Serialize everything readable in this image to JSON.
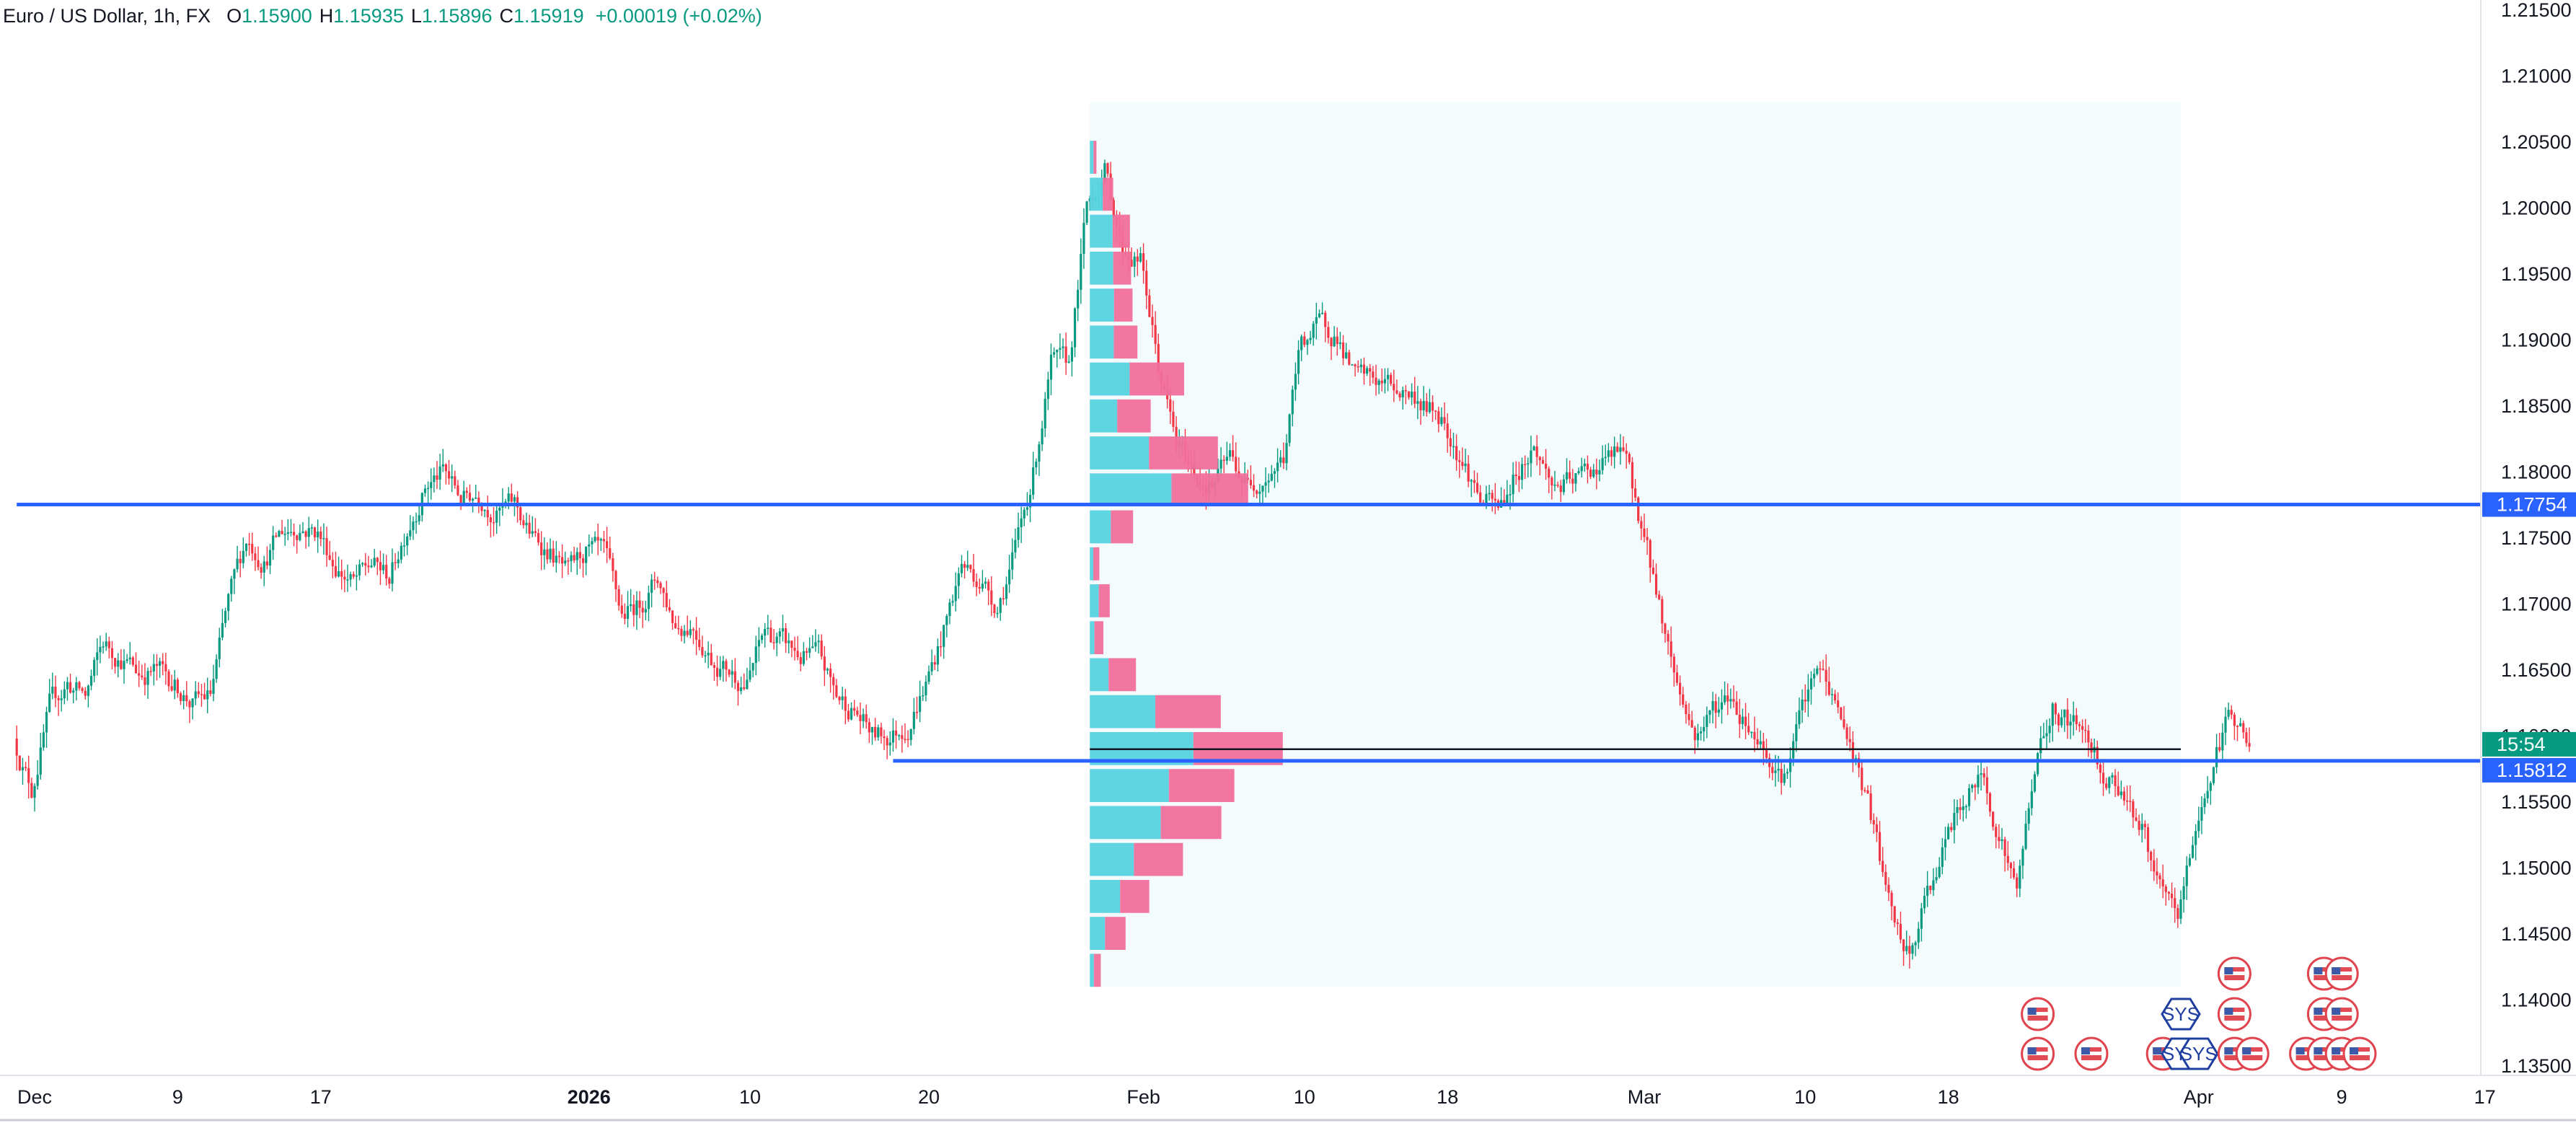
{
  "legend": {
    "symbol": "Euro / US Dollar, 1h, FX",
    "open_label": "O",
    "open": "1.15900",
    "high_label": "H",
    "high": "1.15935",
    "low_label": "L",
    "low": "1.15896",
    "close_label": "C",
    "close": "1.15919",
    "change": "+0.00019 (+0.02%)"
  },
  "colors": {
    "up": "#089981",
    "down": "#f23645",
    "hline": "#2962ff",
    "poc": "#131722",
    "vp_up": "#56d3e0",
    "vp_down": "#f06f9b",
    "vp_bg": "#f3fbfd"
  },
  "price_tags": {
    "countdown": "15:54",
    "last_price": "1.15812"
  },
  "chart_data": {
    "type": "candlestick",
    "symbol": "EURUSD",
    "timeframe": "1h",
    "y_axis": {
      "range": [
        1.135,
        1.215
      ],
      "ticks": [
        "1.21500",
        "1.21000",
        "1.20500",
        "1.20000",
        "1.19500",
        "1.19000",
        "1.18500",
        "1.18000",
        "1.17500",
        "1.17000",
        "1.16500",
        "1.16000",
        "1.15500",
        "1.15000",
        "1.14500",
        "1.14000",
        "1.13500"
      ]
    },
    "x_axis": {
      "ticks": [
        {
          "label": "Dec",
          "date": "2025-12-01",
          "bold": false
        },
        {
          "label": "9",
          "date": "2025-12-09",
          "bold": false
        },
        {
          "label": "17",
          "date": "2025-12-17",
          "bold": false
        },
        {
          "label": "2026",
          "date": "2026-01-01",
          "bold": true
        },
        {
          "label": "10",
          "date": "2026-01-10",
          "bold": false
        },
        {
          "label": "20",
          "date": "2026-01-20",
          "bold": false
        },
        {
          "label": "Feb",
          "date": "2026-02-01",
          "bold": false
        },
        {
          "label": "10",
          "date": "2026-02-10",
          "bold": false
        },
        {
          "label": "18",
          "date": "2026-02-18",
          "bold": false
        },
        {
          "label": "Mar",
          "date": "2026-03-01",
          "bold": false
        },
        {
          "label": "10",
          "date": "2026-03-10",
          "bold": false
        },
        {
          "label": "18",
          "date": "2026-03-18",
          "bold": false
        },
        {
          "label": "Apr",
          "date": "2026-04-01",
          "bold": false
        },
        {
          "label": "9",
          "date": "2026-04-09",
          "bold": false
        },
        {
          "label": "17",
          "date": "2026-04-17",
          "bold": false
        }
      ]
    },
    "price_path": [
      [
        "2025-11-30",
        1.1598
      ],
      [
        "2025-12-01",
        1.156
      ],
      [
        "2025-12-02",
        1.162
      ],
      [
        "2025-12-03",
        1.164
      ],
      [
        "2025-12-04",
        1.163
      ],
      [
        "2025-12-05",
        1.167
      ],
      [
        "2025-12-06",
        1.166
      ],
      [
        "2025-12-07",
        1.1648
      ],
      [
        "2025-12-08",
        1.165
      ],
      [
        "2025-12-09",
        1.164
      ],
      [
        "2025-12-10",
        1.1625
      ],
      [
        "2025-12-11",
        1.163
      ],
      [
        "2025-12-12",
        1.17
      ],
      [
        "2025-12-13",
        1.175
      ],
      [
        "2025-12-14",
        1.1735
      ],
      [
        "2025-12-15",
        1.1755
      ],
      [
        "2025-12-16",
        1.176
      ],
      [
        "2025-12-17",
        1.1755
      ],
      [
        "2025-12-18",
        1.173
      ],
      [
        "2025-12-19",
        1.1715
      ],
      [
        "2025-12-20",
        1.173
      ],
      [
        "2025-12-21",
        1.172
      ],
      [
        "2025-12-22",
        1.176
      ],
      [
        "2025-12-23",
        1.179
      ],
      [
        "2025-12-24",
        1.18
      ],
      [
        "2025-12-25",
        1.178
      ],
      [
        "2025-12-26",
        1.1785
      ],
      [
        "2025-12-27",
        1.177
      ],
      [
        "2025-12-28",
        1.1775
      ],
      [
        "2025-12-29",
        1.175
      ],
      [
        "2025-12-30",
        1.174
      ],
      [
        "2025-12-31",
        1.172
      ],
      [
        "2026-01-01",
        1.174
      ],
      [
        "2026-01-02",
        1.1735
      ],
      [
        "2026-01-03",
        1.169
      ],
      [
        "2026-01-04",
        1.17
      ],
      [
        "2026-01-05",
        1.172
      ],
      [
        "2026-01-06",
        1.1685
      ],
      [
        "2026-01-07",
        1.1685
      ],
      [
        "2026-01-08",
        1.166
      ],
      [
        "2026-01-09",
        1.165
      ],
      [
        "2026-01-10",
        1.164
      ],
      [
        "2026-01-11",
        1.168
      ],
      [
        "2026-01-12",
        1.167
      ],
      [
        "2026-01-13",
        1.166
      ],
      [
        "2026-01-14",
        1.166
      ],
      [
        "2026-01-15",
        1.163
      ],
      [
        "2026-01-16",
        1.162
      ],
      [
        "2026-01-17",
        1.16
      ],
      [
        "2026-01-18",
        1.16
      ],
      [
        "2026-01-19",
        1.161
      ],
      [
        "2026-01-20",
        1.164
      ],
      [
        "2026-01-21",
        1.168
      ],
      [
        "2026-01-22",
        1.173
      ],
      [
        "2026-01-23",
        1.172
      ],
      [
        "2026-01-24",
        1.17
      ],
      [
        "2026-01-25",
        1.174
      ],
      [
        "2026-01-26",
        1.18
      ],
      [
        "2026-01-27",
        1.188
      ],
      [
        "2026-01-28",
        1.188
      ],
      [
        "2026-01-29",
        1.2
      ],
      [
        "2026-01-30",
        1.203
      ],
      [
        "2026-01-31",
        1.197
      ],
      [
        "2026-02-01",
        1.196
      ],
      [
        "2026-02-02",
        1.188
      ],
      [
        "2026-02-03",
        1.182
      ],
      [
        "2026-02-04",
        1.18
      ],
      [
        "2026-02-05",
        1.179
      ],
      [
        "2026-02-06",
        1.181
      ],
      [
        "2026-02-07",
        1.179
      ],
      [
        "2026-02-08",
        1.18
      ],
      [
        "2026-02-09",
        1.181
      ],
      [
        "2026-02-10",
        1.19
      ],
      [
        "2026-02-11",
        1.191
      ],
      [
        "2026-02-12",
        1.1905
      ],
      [
        "2026-02-13",
        1.187
      ],
      [
        "2026-02-14",
        1.187
      ],
      [
        "2026-02-15",
        1.1865
      ],
      [
        "2026-02-16",
        1.186
      ],
      [
        "2026-02-17",
        1.185
      ],
      [
        "2026-02-18",
        1.184
      ],
      [
        "2026-02-19",
        1.181
      ],
      [
        "2026-02-20",
        1.178
      ],
      [
        "2026-02-21",
        1.177
      ],
      [
        "2026-02-22",
        1.18
      ],
      [
        "2026-02-23",
        1.182
      ],
      [
        "2026-02-24",
        1.179
      ],
      [
        "2026-02-25",
        1.179
      ],
      [
        "2026-02-26",
        1.18
      ],
      [
        "2026-02-27",
        1.181
      ],
      [
        "2026-02-28",
        1.1815
      ],
      [
        "2026-03-01",
        1.176
      ],
      [
        "2026-03-02",
        1.17
      ],
      [
        "2026-03-03",
        1.164
      ],
      [
        "2026-03-04",
        1.16
      ],
      [
        "2026-03-05",
        1.162
      ],
      [
        "2026-03-06",
        1.163
      ],
      [
        "2026-03-07",
        1.161
      ],
      [
        "2026-03-08",
        1.159
      ],
      [
        "2026-03-09",
        1.157
      ],
      [
        "2026-03-10",
        1.162
      ],
      [
        "2026-03-11",
        1.165
      ],
      [
        "2026-03-12",
        1.162
      ],
      [
        "2026-03-13",
        1.158
      ],
      [
        "2026-03-14",
        1.153
      ],
      [
        "2026-03-15",
        1.146
      ],
      [
        "2026-03-16",
        1.143
      ],
      [
        "2026-03-17",
        1.148
      ],
      [
        "2026-03-18",
        1.152
      ],
      [
        "2026-03-19",
        1.155
      ],
      [
        "2026-03-20",
        1.157
      ],
      [
        "2026-03-21",
        1.153
      ],
      [
        "2026-03-22",
        1.148
      ],
      [
        "2026-03-23",
        1.158
      ],
      [
        "2026-03-24",
        1.162
      ],
      [
        "2026-03-25",
        1.161
      ],
      [
        "2026-03-26",
        1.16
      ],
      [
        "2026-03-27",
        1.157
      ],
      [
        "2026-03-28",
        1.156
      ],
      [
        "2026-03-29",
        1.153
      ],
      [
        "2026-03-30",
        1.148
      ],
      [
        "2026-03-31",
        1.146
      ],
      [
        "2026-04-01",
        1.153
      ],
      [
        "2026-04-02",
        1.158
      ],
      [
        "2026-04-03",
        1.162
      ],
      [
        "2026-04-04",
        1.1592
      ]
    ],
    "horizontal_lines": [
      {
        "price": 1.17754,
        "label": "1.17754",
        "start": "2025-11-30"
      },
      {
        "price": 1.15812,
        "label": "1.15812",
        "start": "2026-01-18"
      }
    ],
    "volume_profile": {
      "start": "2026-01-29",
      "end": "2026-03-31",
      "price_range": [
        1.141,
        1.208
      ],
      "poc_price": 1.159,
      "rows": [
        {
          "low": 1.141,
          "high": 1.1435,
          "up": 1.4,
          "down": 2.4
        },
        {
          "low": 1.1438,
          "high": 1.1463,
          "up": 5.3,
          "down": 7.1
        },
        {
          "low": 1.1466,
          "high": 1.1491,
          "up": 10.5,
          "down": 10.1
        },
        {
          "low": 1.1494,
          "high": 1.1519,
          "up": 15.3,
          "down": 17.0
        },
        {
          "low": 1.1522,
          "high": 1.1547,
          "up": 24.6,
          "down": 21.0
        },
        {
          "low": 1.155,
          "high": 1.1575,
          "up": 27.4,
          "down": 22.7
        },
        {
          "low": 1.1578,
          "high": 1.1603,
          "up": 35.9,
          "down": 31.0
        },
        {
          "low": 1.1606,
          "high": 1.1631,
          "up": 22.7,
          "down": 22.7
        },
        {
          "low": 1.1634,
          "high": 1.1659,
          "up": 6.5,
          "down": 9.5
        },
        {
          "low": 1.1662,
          "high": 1.1687,
          "up": 1.6,
          "down": 3.1
        },
        {
          "low": 1.169,
          "high": 1.1715,
          "up": 3.1,
          "down": 3.8
        },
        {
          "low": 1.1718,
          "high": 1.1743,
          "up": 1.2,
          "down": 2.1
        },
        {
          "low": 1.1746,
          "high": 1.1771,
          "up": 7.3,
          "down": 7.7
        },
        {
          "low": 1.1774,
          "high": 1.1799,
          "up": 28.3,
          "down": 26.6
        },
        {
          "low": 1.1802,
          "high": 1.1827,
          "up": 20.5,
          "down": 23.9
        },
        {
          "low": 1.183,
          "high": 1.1855,
          "up": 9.5,
          "down": 11.6
        },
        {
          "low": 1.1858,
          "high": 1.1883,
          "up": 13.8,
          "down": 18.9
        },
        {
          "low": 1.1886,
          "high": 1.1911,
          "up": 8.3,
          "down": 8.2
        },
        {
          "low": 1.1914,
          "high": 1.1939,
          "up": 8.4,
          "down": 6.4
        },
        {
          "low": 1.1942,
          "high": 1.1967,
          "up": 8.1,
          "down": 6.2
        },
        {
          "low": 1.197,
          "high": 1.1995,
          "up": 7.9,
          "down": 6.0
        },
        {
          "low": 1.1998,
          "high": 1.2023,
          "up": 4.5,
          "down": 3.6
        },
        {
          "low": 1.2026,
          "high": 1.2051,
          "up": 1.3,
          "down": 1.0
        }
      ]
    },
    "events": [
      {
        "date": "2026-03-23",
        "rows": [
          1,
          2
        ],
        "type": "flag"
      },
      {
        "date": "2026-03-26",
        "rows": [
          2
        ],
        "type": "flag"
      },
      {
        "date": "2026-03-30",
        "rows": [
          2
        ],
        "type": "flag"
      },
      {
        "date": "2026-03-31",
        "rows": [
          1,
          2
        ],
        "type": "badge",
        "text": "SYS"
      },
      {
        "date": "2026-04-01",
        "rows": [
          2
        ],
        "type": "badge",
        "text": "SYS"
      },
      {
        "date": "2026-04-03",
        "rows": [
          0,
          1,
          2
        ],
        "type": "flag"
      },
      {
        "date": "2026-04-04",
        "rows": [
          2
        ],
        "type": "flag"
      },
      {
        "date": "2026-04-07",
        "rows": [
          2
        ],
        "type": "flag"
      },
      {
        "date": "2026-04-08",
        "rows": [
          0,
          1,
          2
        ],
        "type": "flag"
      },
      {
        "date": "2026-04-09",
        "rows": [
          0,
          1,
          2
        ],
        "type": "flag"
      },
      {
        "date": "2026-04-10",
        "rows": [
          2
        ],
        "type": "flag"
      }
    ]
  }
}
